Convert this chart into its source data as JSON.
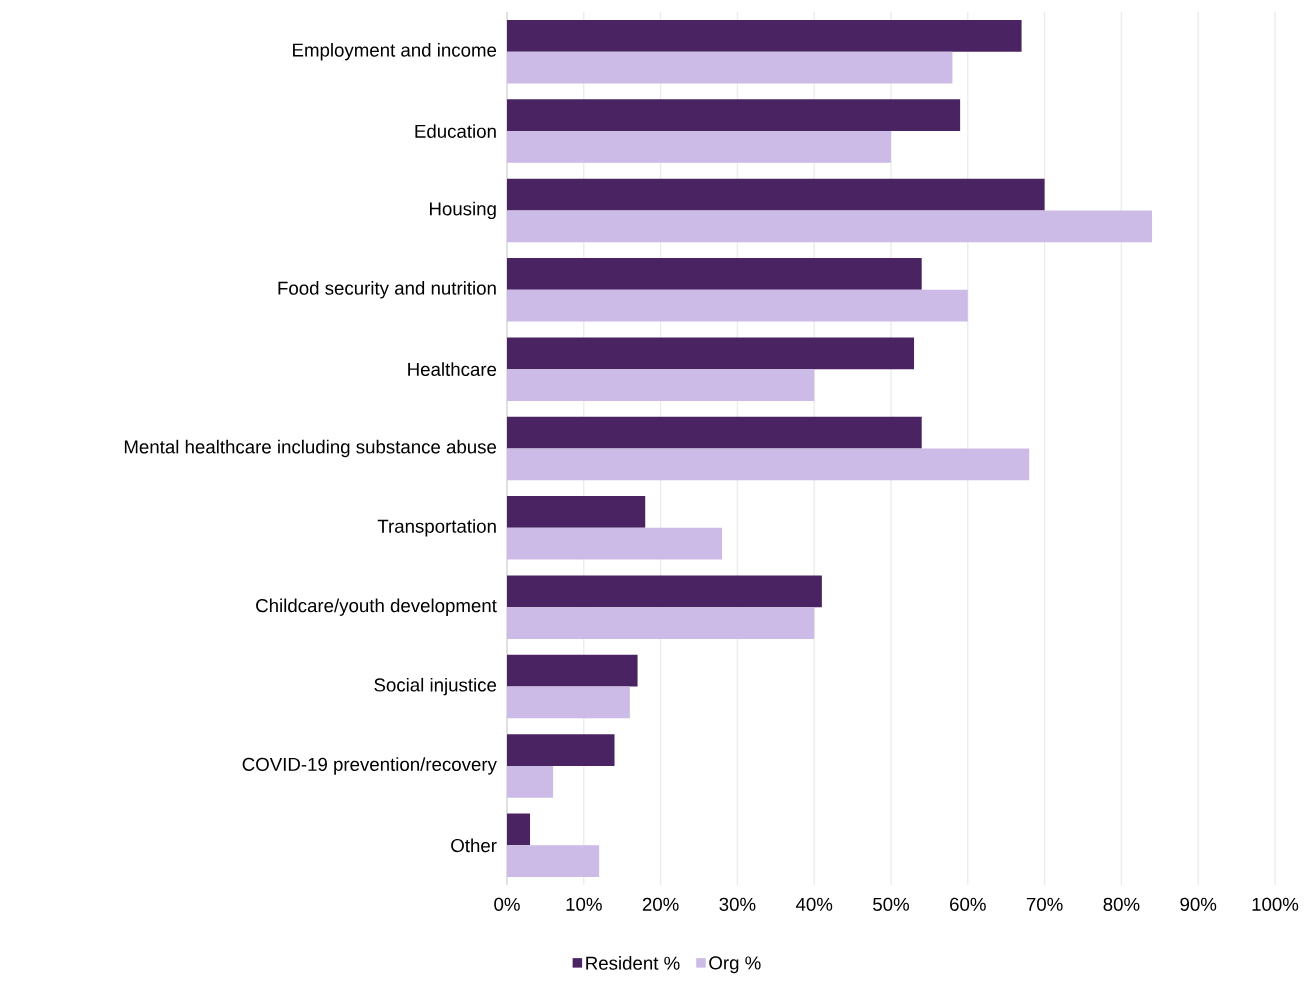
{
  "chart_data": {
    "type": "bar",
    "orientation": "horizontal",
    "categories": [
      "Employment and income",
      "Education",
      "Housing",
      "Food security and nutrition",
      "Healthcare",
      "Mental healthcare including substance abuse",
      "Transportation",
      "Childcare/youth development",
      "Social injustice",
      "COVID-19 prevention/recovery",
      "Other"
    ],
    "series": [
      {
        "name": "Resident %",
        "color": "#4a2362",
        "values": [
          67,
          59,
          70,
          54,
          53,
          54,
          18,
          41,
          17,
          14,
          3
        ]
      },
      {
        "name": "Org %",
        "color": "#cbbbe6",
        "values": [
          58,
          50,
          84,
          60,
          40,
          68,
          28,
          40,
          16,
          6,
          12
        ]
      }
    ],
    "xlim": [
      0,
      100
    ],
    "xticks": [
      {
        "value": 0,
        "label": "0%"
      },
      {
        "value": 10,
        "label": "10%"
      },
      {
        "value": 20,
        "label": "20%"
      },
      {
        "value": 30,
        "label": "30%"
      },
      {
        "value": 40,
        "label": "40%"
      },
      {
        "value": 50,
        "label": "50%"
      },
      {
        "value": 60,
        "label": "60%"
      },
      {
        "value": 70,
        "label": "70%"
      },
      {
        "value": 80,
        "label": "80%"
      },
      {
        "value": 90,
        "label": "90%"
      },
      {
        "value": 100,
        "label": "100%"
      }
    ],
    "grid": "x",
    "legend": "bottom"
  }
}
